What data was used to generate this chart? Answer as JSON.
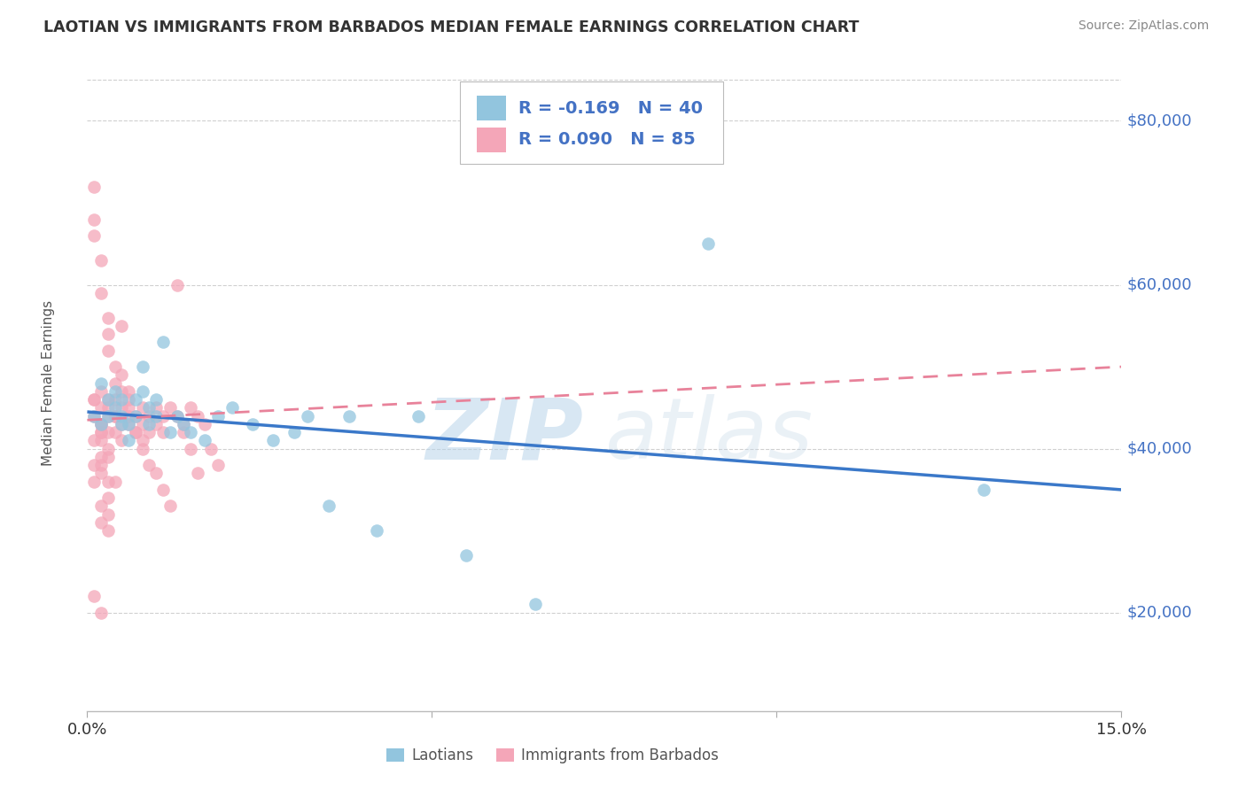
{
  "title": "LAOTIAN VS IMMIGRANTS FROM BARBADOS MEDIAN FEMALE EARNINGS CORRELATION CHART",
  "source_text": "Source: ZipAtlas.com",
  "ylabel": "Median Female Earnings",
  "xmin": 0.0,
  "xmax": 0.15,
  "ymin": 8000,
  "ymax": 88000,
  "yticks": [
    20000,
    40000,
    60000,
    80000
  ],
  "xticks": [
    0.0,
    0.05,
    0.1,
    0.15
  ],
  "xtick_labels": [
    "0.0%",
    "",
    "",
    "15.0%"
  ],
  "ytick_labels": [
    "$20,000",
    "$40,000",
    "$60,000",
    "$80,000"
  ],
  "legend_r1": "R = -0.169",
  "legend_n1": "N = 40",
  "legend_r2": "R = 0.090",
  "legend_n2": "N = 85",
  "laotian_color": "#92c5de",
  "barbados_color": "#f4a6b8",
  "trend_blue": "#3a78c9",
  "trend_pink": "#e8829a",
  "watermark_zip_color": "#6baed6",
  "watermark_atlas_color": "#adc9e0",
  "background_color": "#ffffff",
  "grid_color": "#d0d0d0",
  "title_color": "#333333",
  "axis_label_color": "#4472c4",
  "legend_text_color": "#4472c4",
  "legend_r_color": "#222222",
  "source_color": "#888888",
  "lao_trend_y0": 44500,
  "lao_trend_y1": 35000,
  "barb_trend_y0": 43500,
  "barb_trend_y1": 50000,
  "laotian_points_x": [
    0.001,
    0.002,
    0.002,
    0.003,
    0.003,
    0.004,
    0.004,
    0.005,
    0.005,
    0.005,
    0.006,
    0.006,
    0.007,
    0.007,
    0.008,
    0.008,
    0.009,
    0.009,
    0.01,
    0.01,
    0.011,
    0.012,
    0.013,
    0.014,
    0.015,
    0.017,
    0.019,
    0.021,
    0.024,
    0.027,
    0.03,
    0.032,
    0.035,
    0.038,
    0.042,
    0.048,
    0.055,
    0.065,
    0.09,
    0.13
  ],
  "laotian_points_y": [
    44000,
    43000,
    48000,
    44000,
    46000,
    45000,
    47000,
    43000,
    44000,
    46000,
    43000,
    41000,
    44000,
    46000,
    47000,
    50000,
    43000,
    45000,
    44000,
    46000,
    53000,
    42000,
    44000,
    43000,
    42000,
    41000,
    44000,
    45000,
    43000,
    41000,
    42000,
    44000,
    33000,
    44000,
    30000,
    44000,
    27000,
    21000,
    65000,
    35000
  ],
  "barbados_points_x": [
    0.001,
    0.001,
    0.001,
    0.002,
    0.002,
    0.002,
    0.002,
    0.003,
    0.003,
    0.003,
    0.003,
    0.004,
    0.004,
    0.004,
    0.005,
    0.005,
    0.005,
    0.005,
    0.006,
    0.006,
    0.006,
    0.007,
    0.007,
    0.008,
    0.008,
    0.008,
    0.009,
    0.009,
    0.01,
    0.01,
    0.011,
    0.011,
    0.012,
    0.013,
    0.014,
    0.015,
    0.016,
    0.017,
    0.018,
    0.019,
    0.001,
    0.001,
    0.002,
    0.002,
    0.003,
    0.003,
    0.003,
    0.004,
    0.004,
    0.005,
    0.005,
    0.006,
    0.006,
    0.007,
    0.008,
    0.009,
    0.01,
    0.011,
    0.012,
    0.013,
    0.014,
    0.015,
    0.016,
    0.002,
    0.002,
    0.003,
    0.003,
    0.004,
    0.002,
    0.003,
    0.004,
    0.001,
    0.002,
    0.003,
    0.001,
    0.002,
    0.001,
    0.002,
    0.003,
    0.002,
    0.001,
    0.002,
    0.001,
    0.002,
    0.003
  ],
  "barbados_points_y": [
    44000,
    46000,
    68000,
    45000,
    47000,
    43000,
    41000,
    44000,
    46000,
    42000,
    45000,
    46000,
    44000,
    42000,
    45000,
    43000,
    47000,
    41000,
    46000,
    43000,
    45000,
    44000,
    42000,
    43000,
    45000,
    41000,
    44000,
    42000,
    45000,
    43000,
    44000,
    42000,
    45000,
    44000,
    43000,
    45000,
    44000,
    43000,
    40000,
    38000,
    72000,
    66000,
    63000,
    59000,
    56000,
    54000,
    52000,
    50000,
    48000,
    55000,
    49000,
    47000,
    44000,
    42000,
    40000,
    38000,
    37000,
    35000,
    33000,
    60000,
    42000,
    40000,
    37000,
    38000,
    33000,
    32000,
    30000,
    44000,
    42000,
    40000,
    36000,
    22000,
    42000,
    39000,
    36000,
    20000,
    38000,
    37000,
    34000,
    31000,
    46000,
    43000,
    41000,
    39000,
    36000
  ]
}
